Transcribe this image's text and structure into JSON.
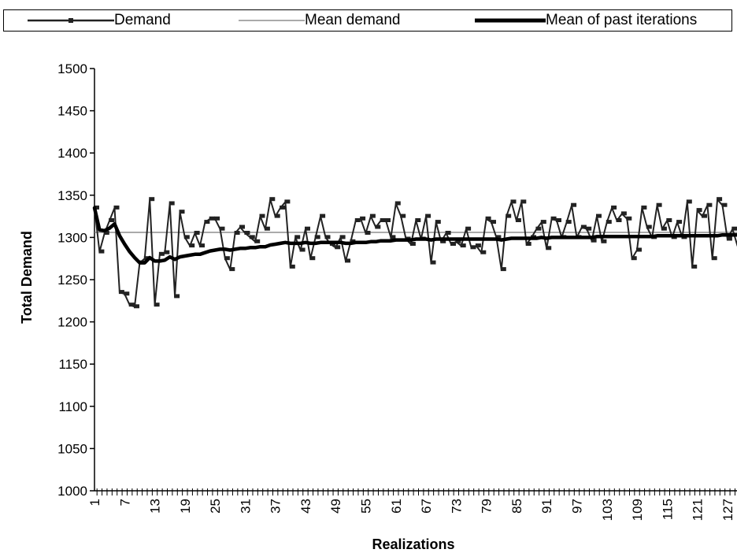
{
  "chart_data": {
    "type": "line",
    "xlabel": "Realizations",
    "ylabel": "Total Demand",
    "ylim": [
      1000,
      1500
    ],
    "yticks": [
      1000,
      1050,
      1100,
      1150,
      1200,
      1250,
      1300,
      1350,
      1400,
      1450,
      1500
    ],
    "xlim": [
      1,
      130
    ],
    "xtick_labels": [
      1,
      7,
      13,
      19,
      25,
      31,
      37,
      43,
      49,
      55,
      61,
      67,
      73,
      79,
      85,
      91,
      97,
      103,
      109,
      115,
      121,
      127
    ],
    "legend": {
      "placement": "top"
    },
    "series": [
      {
        "name": "Demand",
        "color": "#222222",
        "marker": "square",
        "values": [
          1335,
          1283,
          1305,
          1320,
          1335,
          1235,
          1233,
          1220,
          1218,
          1270,
          1275,
          1345,
          1220,
          1280,
          1282,
          1340,
          1230,
          1330,
          1300,
          1290,
          1305,
          1290,
          1318,
          1322,
          1322,
          1310,
          1275,
          1262,
          1305,
          1312,
          1305,
          1300,
          1295,
          1325,
          1310,
          1345,
          1325,
          1335,
          1342,
          1265,
          1300,
          1285,
          1310,
          1275,
          1300,
          1325,
          1300,
          1292,
          1288,
          1300,
          1272,
          1295,
          1320,
          1322,
          1305,
          1325,
          1312,
          1320,
          1320,
          1300,
          1340,
          1325,
          1298,
          1292,
          1320,
          1298,
          1325,
          1270,
          1318,
          1295,
          1305,
          1292,
          1295,
          1290,
          1310,
          1288,
          1290,
          1282,
          1322,
          1318,
          1300,
          1262,
          1325,
          1342,
          1320,
          1342,
          1292,
          1300,
          1310,
          1318,
          1287,
          1322,
          1320,
          1300,
          1318,
          1338,
          1300,
          1312,
          1310,
          1296,
          1325,
          1295,
          1318,
          1335,
          1320,
          1328,
          1322,
          1275,
          1285,
          1335,
          1312,
          1300,
          1338,
          1310,
          1320,
          1300,
          1318,
          1300,
          1342,
          1265,
          1332,
          1325,
          1338,
          1275,
          1345,
          1338,
          1298,
          1310,
          1290,
          1305
        ],
        "data_labels": []
      },
      {
        "name": "Mean demand",
        "color": "#777777",
        "constant": 1306
      },
      {
        "name": "Mean of past iterations",
        "color": "#000000",
        "values": [
          1335,
          1309,
          1308,
          1311,
          1316,
          1302,
          1292,
          1283,
          1276,
          1270,
          1270,
          1276,
          1272,
          1272,
          1273,
          1277,
          1274,
          1277,
          1278,
          1279,
          1280,
          1280,
          1282,
          1284,
          1285,
          1286,
          1286,
          1285,
          1286,
          1287,
          1287,
          1288,
          1288,
          1289,
          1289,
          1291,
          1292,
          1293,
          1294,
          1293,
          1293,
          1293,
          1294,
          1293,
          1293,
          1294,
          1294,
          1294,
          1294,
          1294,
          1293,
          1293,
          1294,
          1294,
          1294,
          1295,
          1295,
          1296,
          1296,
          1296,
          1297,
          1297,
          1297,
          1297,
          1298,
          1298,
          1298,
          1297,
          1298,
          1298,
          1298,
          1298,
          1298,
          1298,
          1298,
          1298,
          1298,
          1298,
          1298,
          1298,
          1298,
          1297,
          1298,
          1299,
          1299,
          1299,
          1299,
          1299,
          1299,
          1300,
          1299,
          1300,
          1300,
          1300,
          1300,
          1300,
          1300,
          1300,
          1300,
          1300,
          1301,
          1301,
          1301,
          1301,
          1301,
          1301,
          1301,
          1301,
          1301,
          1301,
          1301,
          1301,
          1302,
          1302,
          1302,
          1302,
          1302,
          1302,
          1302,
          1302,
          1302,
          1302,
          1302,
          1302,
          1302,
          1303,
          1303,
          1303,
          1303,
          1303,
          1303
        ]
      }
    ]
  }
}
